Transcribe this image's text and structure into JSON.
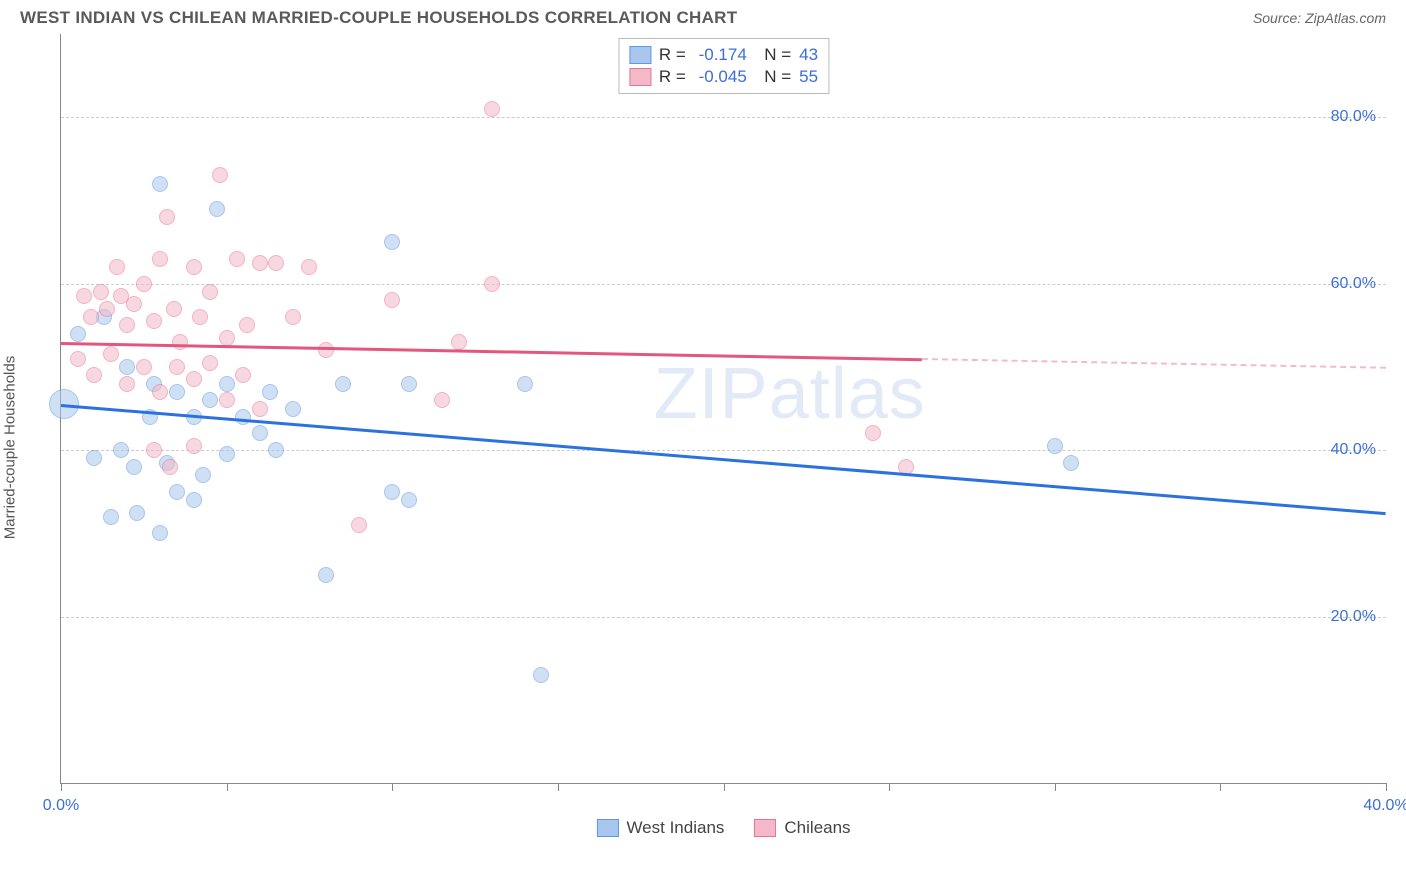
{
  "header": {
    "title": "WEST INDIAN VS CHILEAN MARRIED-COUPLE HOUSEHOLDS CORRELATION CHART",
    "source_prefix": "Source: ",
    "source_name": "ZipAtlas.com"
  },
  "watermark": {
    "zip": "ZIP",
    "atlas": "atlas"
  },
  "chart": {
    "type": "scatter",
    "background_color": "#ffffff",
    "grid_color": "#cccccc",
    "axis_color": "#888888",
    "label_color": "#555555",
    "tick_label_color": "#3b6fd6",
    "y_axis_label": "Married-couple Households",
    "title_fontsize": 17,
    "tick_fontsize": 16,
    "axis_label_fontsize": 15,
    "xlim": [
      0,
      40
    ],
    "ylim": [
      0,
      90
    ],
    "x_ticks": [
      0,
      5,
      10,
      15,
      20,
      25,
      30,
      35,
      40
    ],
    "x_tick_labels": {
      "0": "0.0%",
      "40": "40.0%"
    },
    "y_gridlines": [
      20,
      40,
      60,
      80
    ],
    "y_tick_labels": {
      "20": "20.0%",
      "40": "40.0%",
      "60": "60.0%",
      "80": "80.0%"
    },
    "point_radius": 8,
    "big_point_radius": 15,
    "series": [
      {
        "name": "West Indians",
        "fill": "#a9c7ee",
        "stroke": "#5f98e0",
        "fill_opacity": 0.55,
        "R": "-0.174",
        "N": "43",
        "trend": {
          "color": "#2b72e0",
          "y_at_x0": 45.5,
          "y_at_x40": 32.5,
          "solid_until_x": 40
        },
        "points": [
          {
            "x": 0.1,
            "y": 45.5,
            "r": 15
          },
          {
            "x": 3.0,
            "y": 72.0
          },
          {
            "x": 4.7,
            "y": 69.0
          },
          {
            "x": 10.0,
            "y": 65.0
          },
          {
            "x": 0.5,
            "y": 54.0
          },
          {
            "x": 1.3,
            "y": 56.0
          },
          {
            "x": 2.0,
            "y": 50.0
          },
          {
            "x": 2.8,
            "y": 48.0
          },
          {
            "x": 3.5,
            "y": 47.0
          },
          {
            "x": 4.0,
            "y": 44.0
          },
          {
            "x": 4.5,
            "y": 46.0
          },
          {
            "x": 5.0,
            "y": 48.0
          },
          {
            "x": 5.5,
            "y": 44.0
          },
          {
            "x": 6.0,
            "y": 42.0
          },
          {
            "x": 6.3,
            "y": 47.0
          },
          {
            "x": 7.0,
            "y": 45.0
          },
          {
            "x": 8.5,
            "y": 48.0
          },
          {
            "x": 10.5,
            "y": 48.0
          },
          {
            "x": 10.0,
            "y": 35.0
          },
          {
            "x": 10.5,
            "y": 34.0
          },
          {
            "x": 1.0,
            "y": 39.0
          },
          {
            "x": 1.8,
            "y": 40.0
          },
          {
            "x": 2.2,
            "y": 38.0
          },
          {
            "x": 2.7,
            "y": 44.0
          },
          {
            "x": 3.2,
            "y": 38.5
          },
          {
            "x": 3.5,
            "y": 35.0
          },
          {
            "x": 4.0,
            "y": 34.0
          },
          {
            "x": 4.3,
            "y": 37.0
          },
          {
            "x": 5.0,
            "y": 39.5
          },
          {
            "x": 1.5,
            "y": 32.0
          },
          {
            "x": 2.3,
            "y": 32.5
          },
          {
            "x": 3.0,
            "y": 30.0
          },
          {
            "x": 6.5,
            "y": 40.0
          },
          {
            "x": 14.0,
            "y": 48.0
          },
          {
            "x": 8.0,
            "y": 25.0
          },
          {
            "x": 14.5,
            "y": 13.0
          },
          {
            "x": 30.0,
            "y": 40.5
          },
          {
            "x": 30.5,
            "y": 38.5
          }
        ]
      },
      {
        "name": "Chileans",
        "fill": "#f3b9c8",
        "stroke": "#e77495",
        "fill_opacity": 0.55,
        "R": "-0.045",
        "N": "55",
        "trend": {
          "color": "#e3567d",
          "y_at_x0": 53.0,
          "y_at_x40": 50.0,
          "solid_until_x": 26
        },
        "points": [
          {
            "x": 13.0,
            "y": 81.0
          },
          {
            "x": 4.8,
            "y": 73.0
          },
          {
            "x": 3.2,
            "y": 68.0
          },
          {
            "x": 0.7,
            "y": 58.5
          },
          {
            "x": 0.9,
            "y": 56.0
          },
          {
            "x": 1.2,
            "y": 59.0
          },
          {
            "x": 1.4,
            "y": 57.0
          },
          {
            "x": 1.7,
            "y": 62.0
          },
          {
            "x": 1.8,
            "y": 58.5
          },
          {
            "x": 2.0,
            "y": 55.0
          },
          {
            "x": 2.2,
            "y": 57.5
          },
          {
            "x": 2.5,
            "y": 60.0
          },
          {
            "x": 2.8,
            "y": 55.5
          },
          {
            "x": 3.0,
            "y": 63.0
          },
          {
            "x": 3.4,
            "y": 57.0
          },
          {
            "x": 3.6,
            "y": 53.0
          },
          {
            "x": 4.0,
            "y": 62.0
          },
          {
            "x": 4.2,
            "y": 56.0
          },
          {
            "x": 4.5,
            "y": 59.0
          },
          {
            "x": 5.0,
            "y": 53.5
          },
          {
            "x": 5.3,
            "y": 63.0
          },
          {
            "x": 5.6,
            "y": 55.0
          },
          {
            "x": 6.0,
            "y": 62.5
          },
          {
            "x": 6.5,
            "y": 62.5
          },
          {
            "x": 7.0,
            "y": 56.0
          },
          {
            "x": 7.5,
            "y": 62.0
          },
          {
            "x": 8.0,
            "y": 52.0
          },
          {
            "x": 10.0,
            "y": 58.0
          },
          {
            "x": 13.0,
            "y": 60.0
          },
          {
            "x": 12.0,
            "y": 53.0
          },
          {
            "x": 0.5,
            "y": 51.0
          },
          {
            "x": 1.0,
            "y": 49.0
          },
          {
            "x": 1.5,
            "y": 51.5
          },
          {
            "x": 2.0,
            "y": 48.0
          },
          {
            "x": 2.5,
            "y": 50.0
          },
          {
            "x": 3.0,
            "y": 47.0
          },
          {
            "x": 3.5,
            "y": 50.0
          },
          {
            "x": 4.0,
            "y": 48.5
          },
          {
            "x": 4.5,
            "y": 50.5
          },
          {
            "x": 5.0,
            "y": 46.0
          },
          {
            "x": 5.5,
            "y": 49.0
          },
          {
            "x": 6.0,
            "y": 45.0
          },
          {
            "x": 2.8,
            "y": 40.0
          },
          {
            "x": 3.3,
            "y": 38.0
          },
          {
            "x": 4.0,
            "y": 40.5
          },
          {
            "x": 11.5,
            "y": 46.0
          },
          {
            "x": 9.0,
            "y": 31.0
          },
          {
            "x": 24.5,
            "y": 42.0
          },
          {
            "x": 25.5,
            "y": 38.0
          }
        ]
      }
    ],
    "legend_bottom": {
      "items": [
        "West Indians",
        "Chileans"
      ]
    }
  }
}
